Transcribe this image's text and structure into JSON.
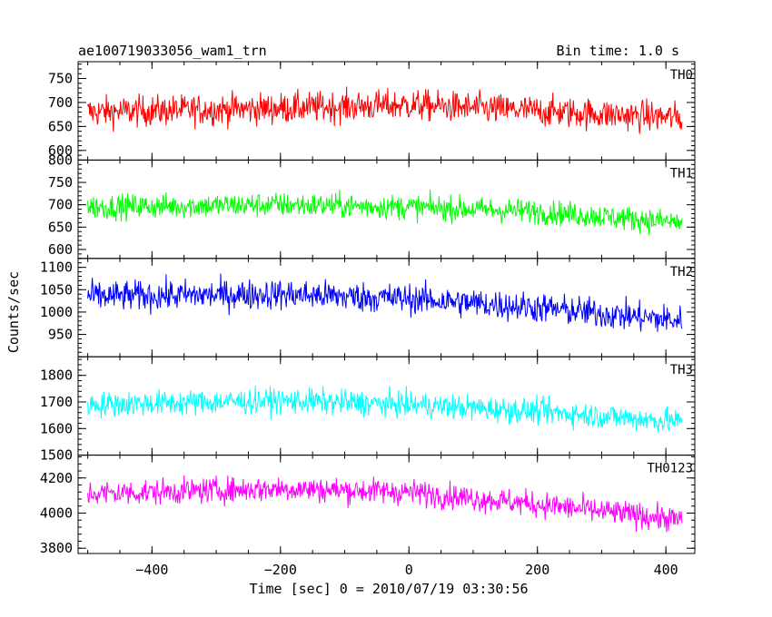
{
  "chart_data": {
    "type": "line",
    "title": "ae100719033056_wam1_trn",
    "subtitle": "Bin time: 1.0 s",
    "xlabel": "Time [sec] 0 = 2010/07/19 03:30:56",
    "ylabel": "Counts/sec",
    "xlim": [
      -515,
      445
    ],
    "x_ticks": [
      -400,
      -200,
      0,
      200,
      400
    ],
    "x_data_range": [
      -500,
      425
    ],
    "bin_time_s": 1.0,
    "grid": false,
    "panels": [
      {
        "name": "TH0",
        "color": "#ff0000",
        "ylim": [
          580,
          785
        ],
        "y_ticks": [
          600,
          650,
          700,
          750
        ],
        "trend": [
          [
            -500,
            680
          ],
          [
            -200,
            688
          ],
          [
            0,
            695
          ],
          [
            200,
            682
          ],
          [
            425,
            668
          ]
        ],
        "noise_amplitude": 42
      },
      {
        "name": "TH1",
        "color": "#00ff00",
        "ylim": [
          580,
          800
        ],
        "y_ticks": [
          600,
          650,
          700,
          750,
          800
        ],
        "trend": [
          [
            -500,
            695
          ],
          [
            -200,
            700
          ],
          [
            0,
            695
          ],
          [
            200,
            685
          ],
          [
            425,
            660
          ]
        ],
        "noise_amplitude": 36
      },
      {
        "name": "TH2",
        "color": "#0000ff",
        "ylim": [
          900,
          1120
        ],
        "y_ticks": [
          950,
          1000,
          1050,
          1100
        ],
        "trend": [
          [
            -500,
            1035
          ],
          [
            -200,
            1040
          ],
          [
            0,
            1030
          ],
          [
            200,
            1010
          ],
          [
            425,
            980
          ]
        ],
        "noise_amplitude": 44
      },
      {
        "name": "TH3",
        "color": "#00ffff",
        "ylim": [
          1500,
          1870
        ],
        "y_ticks": [
          1500,
          1600,
          1700,
          1800
        ],
        "trend": [
          [
            -500,
            1690
          ],
          [
            -200,
            1705
          ],
          [
            0,
            1690
          ],
          [
            200,
            1665
          ],
          [
            425,
            1625
          ]
        ],
        "noise_amplitude": 62
      },
      {
        "name": "TH0123",
        "color": "#ff00ff",
        "ylim": [
          3770,
          4330
        ],
        "y_ticks": [
          3800,
          4000,
          4200
        ],
        "trend": [
          [
            -500,
            4110
          ],
          [
            -200,
            4140
          ],
          [
            0,
            4120
          ],
          [
            200,
            4050
          ],
          [
            425,
            3960
          ]
        ],
        "noise_amplitude": 95
      }
    ]
  }
}
